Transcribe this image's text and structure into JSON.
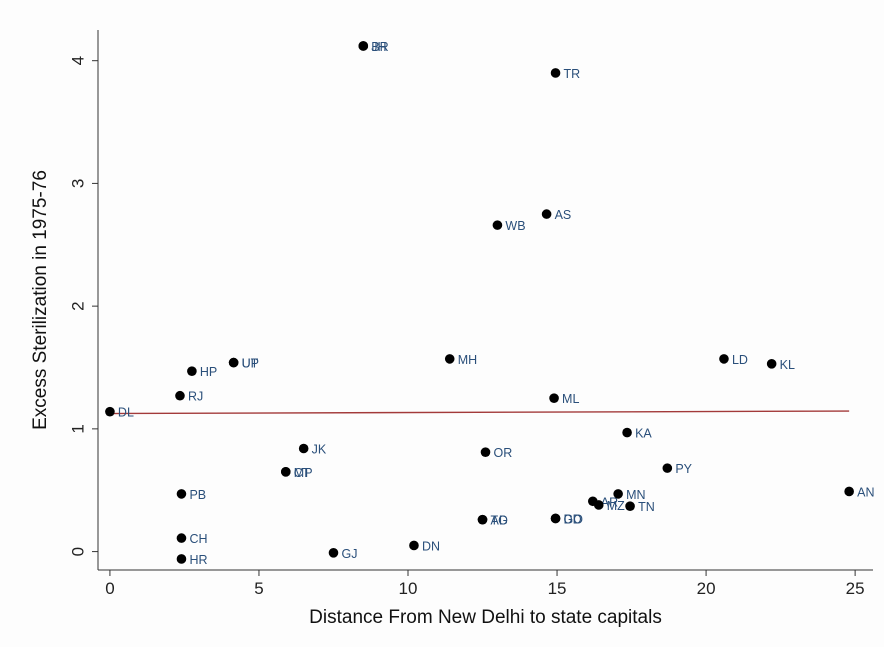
{
  "chart_data": {
    "type": "scatter",
    "xlabel": "Distance From New Delhi to state capitals",
    "ylabel": "Excess Sterilization in 1975-76",
    "xlim": [
      -0.4,
      25.6
    ],
    "ylim": [
      -0.15,
      4.25
    ],
    "xticks": [
      "0",
      "5",
      "10",
      "15",
      "20",
      "25"
    ],
    "yticks": [
      "0",
      "1",
      "2",
      "3",
      "4"
    ],
    "grid": false,
    "legend": "none",
    "point_color": "#000000",
    "label_color": "#2a4f7a",
    "fit_line_color": "#a33a3a",
    "points": [
      {
        "label": "DL",
        "x": 0.0,
        "y": 1.14
      },
      {
        "label": "HR",
        "x": 2.4,
        "y": -0.06
      },
      {
        "label": "CH",
        "x": 2.4,
        "y": 0.11
      },
      {
        "label": "PB",
        "x": 2.4,
        "y": 0.47
      },
      {
        "label": "RJ",
        "x": 2.35,
        "y": 1.27
      },
      {
        "label": "HP",
        "x": 2.75,
        "y": 1.47
      },
      {
        "label": "UP",
        "x": 4.15,
        "y": 1.54
      },
      {
        "label": "UT",
        "x": 4.15,
        "y": 1.54
      },
      {
        "label": "MP",
        "x": 5.9,
        "y": 0.65
      },
      {
        "label": "CT",
        "x": 5.9,
        "y": 0.65
      },
      {
        "label": "JK",
        "x": 6.5,
        "y": 0.84
      },
      {
        "label": "GJ",
        "x": 7.5,
        "y": -0.01
      },
      {
        "label": "BR",
        "x": 8.5,
        "y": 4.12
      },
      {
        "label": "JH",
        "x": 8.5,
        "y": 4.12
      },
      {
        "label": "DN",
        "x": 10.2,
        "y": 0.05
      },
      {
        "label": "MH",
        "x": 11.4,
        "y": 1.57
      },
      {
        "label": "TG",
        "x": 12.5,
        "y": 0.26
      },
      {
        "label": "AD",
        "x": 12.5,
        "y": 0.26
      },
      {
        "label": "OR",
        "x": 12.6,
        "y": 0.81
      },
      {
        "label": "WB",
        "x": 13.0,
        "y": 2.66
      },
      {
        "label": "AS",
        "x": 14.65,
        "y": 2.75
      },
      {
        "label": "ML",
        "x": 14.9,
        "y": 1.25
      },
      {
        "label": "GO",
        "x": 14.95,
        "y": 0.27
      },
      {
        "label": "DD",
        "x": 14.95,
        "y": 0.27
      },
      {
        "label": "TR",
        "x": 14.95,
        "y": 3.9
      },
      {
        "label": "AR",
        "x": 16.2,
        "y": 0.41
      },
      {
        "label": "MZ",
        "x": 16.4,
        "y": 0.38
      },
      {
        "label": "MN",
        "x": 17.05,
        "y": 0.47
      },
      {
        "label": "TN",
        "x": 17.45,
        "y": 0.37
      },
      {
        "label": "KA",
        "x": 17.35,
        "y": 0.97
      },
      {
        "label": "PY",
        "x": 18.7,
        "y": 0.68
      },
      {
        "label": "LD",
        "x": 20.6,
        "y": 1.57
      },
      {
        "label": "KL",
        "x": 22.2,
        "y": 1.53
      },
      {
        "label": "AN",
        "x": 24.8,
        "y": 0.49
      }
    ],
    "fit_line": {
      "x": [
        0,
        24.8
      ],
      "y": [
        1.125,
        1.145
      ]
    }
  }
}
